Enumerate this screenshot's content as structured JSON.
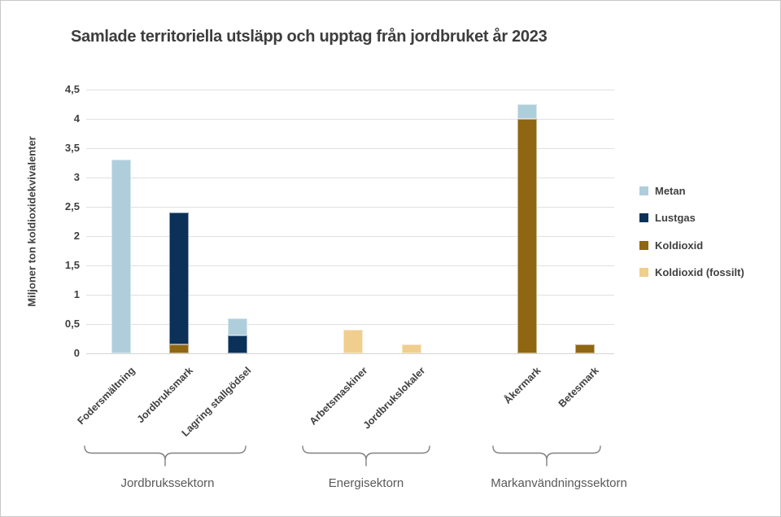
{
  "chart_data": {
    "type": "bar",
    "stacked": true,
    "title": "Samlade territoriella utsläpp och upptag från jordbruket år 2023",
    "xlabel": "",
    "ylabel": "Miljoner ton koldioxidekvivalenter",
    "ylim": [
      0,
      4.5
    ],
    "grid": "horizontal",
    "legend_position": "right",
    "ytick_values": [
      0,
      0.5,
      1,
      1.5,
      2,
      2.5,
      3,
      3.5,
      4,
      4.5
    ],
    "ytick_labels": [
      "0",
      "0,5",
      "1",
      "1,5",
      "2",
      "2,5",
      "3",
      "3,5",
      "4",
      "4,5"
    ],
    "series": [
      {
        "name": "Metan",
        "color": "#AFCEDC"
      },
      {
        "name": "Lustgas",
        "color": "#0B3159"
      },
      {
        "name": "Koldioxid",
        "color": "#8F6712"
      },
      {
        "name": "Koldioxid (fossilt)",
        "color": "#F0CE8E"
      }
    ],
    "categories": [
      "Fodersmältning",
      "Jordbruksmark",
      "Lagring stallgödsel",
      "Arbetsmaskiner",
      "Jordbrukslokaler",
      "Åkermark",
      "Betesmark"
    ],
    "bars": [
      {
        "category": "Fodersmältning",
        "slot": 0,
        "segments": [
          {
            "series": "Metan",
            "value": 3.3
          }
        ]
      },
      {
        "category": "Jordbruksmark",
        "slot": 1,
        "segments": [
          {
            "series": "Koldioxid",
            "value": 0.15
          },
          {
            "series": "Lustgas",
            "value": 2.25
          }
        ]
      },
      {
        "category": "Lagring stallgödsel",
        "slot": 2,
        "segments": [
          {
            "series": "Lustgas",
            "value": 0.3
          },
          {
            "series": "Metan",
            "value": 0.3
          }
        ]
      },
      {
        "category": "Arbetsmaskiner",
        "slot": 4,
        "segments": [
          {
            "series": "Koldioxid (fossilt)",
            "value": 0.4
          }
        ]
      },
      {
        "category": "Jordbrukslokaler",
        "slot": 5,
        "segments": [
          {
            "series": "Koldioxid (fossilt)",
            "value": 0.15
          }
        ]
      },
      {
        "category": "Åkermark",
        "slot": 7,
        "segments": [
          {
            "series": "Koldioxid",
            "value": 4.0
          },
          {
            "series": "Metan",
            "value": 0.25
          }
        ]
      },
      {
        "category": "Betesmark",
        "slot": 8,
        "segments": [
          {
            "series": "Koldioxid",
            "value": 0.15
          }
        ]
      }
    ],
    "groups": [
      {
        "label": "Jordbrukssektorn"
      },
      {
        "label": "Energisektorn"
      },
      {
        "label": "Markanvändningssektorn"
      }
    ]
  }
}
